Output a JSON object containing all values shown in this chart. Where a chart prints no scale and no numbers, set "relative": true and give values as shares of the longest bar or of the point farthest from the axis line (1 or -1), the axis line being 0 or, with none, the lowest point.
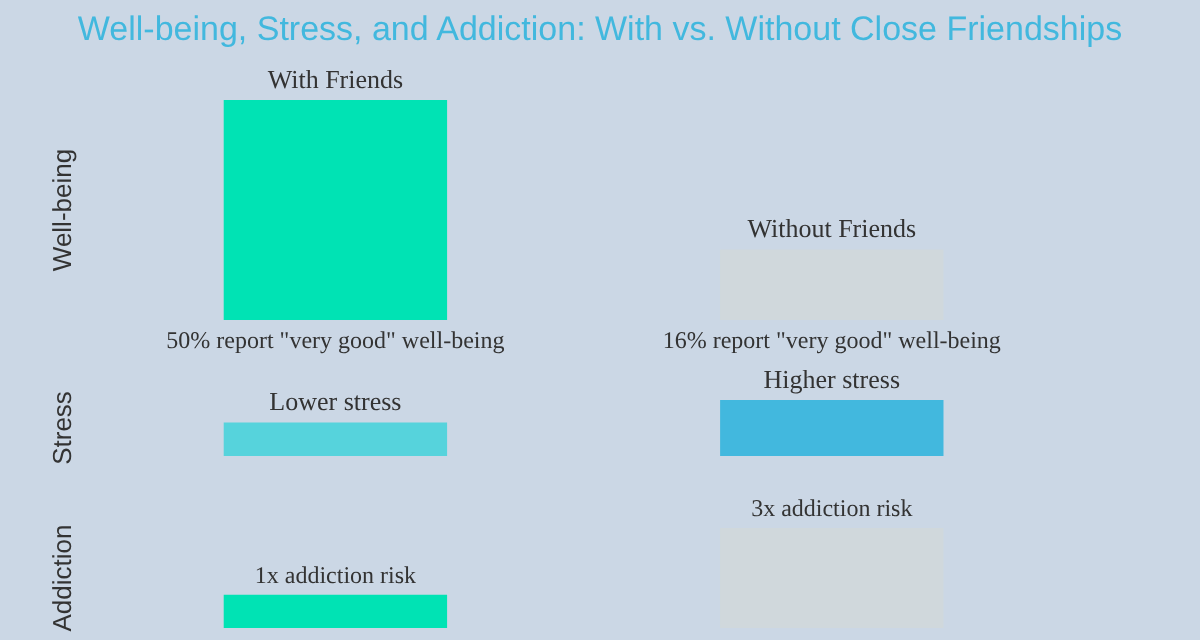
{
  "chart_data": [
    {
      "type": "bar",
      "title": "Well-being, Stress, and Addiction: With vs. Without Close Friendships",
      "ylabel": "Well-being",
      "categories": [
        "With Friends",
        "Without Friends"
      ],
      "values": [
        50,
        16
      ],
      "colors": [
        "#00e3b4",
        "#d0d8dc"
      ],
      "value_labels": [
        "50% report \"very good\" well-being",
        "16% report \"very good\" well-being"
      ],
      "tick_labels": false,
      "grid": false,
      "legend": false
    },
    {
      "type": "bar",
      "ylabel": "Stress",
      "relative": true,
      "categories": [
        "Lower stress",
        "Higher stress"
      ],
      "values": [
        0.6,
        1
      ],
      "colors": [
        "#56d3dc",
        "#42b8de"
      ],
      "grid": false,
      "legend": false
    },
    {
      "type": "bar",
      "ylabel": "Addiction",
      "categories": [
        null,
        null
      ],
      "values": [
        1,
        3
      ],
      "colors": [
        "#00e3b4",
        "#d0d8dc"
      ],
      "value_labels": [
        "1x addiction risk",
        "3x addiction risk"
      ],
      "tick_labels": false,
      "grid": false,
      "legend": false
    }
  ]
}
